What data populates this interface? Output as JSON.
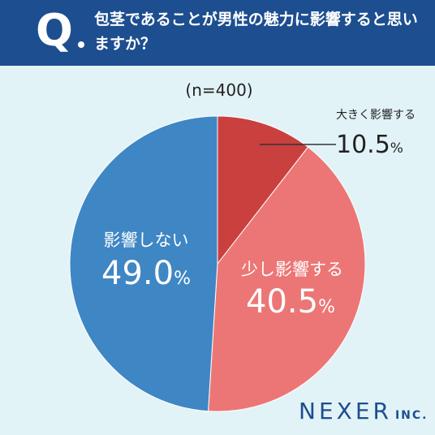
{
  "header": {
    "q_mark": "Q",
    "question": "包茎であることが男性の魅力に影響すると思いますか？"
  },
  "chart_data": {
    "type": "pie",
    "sample_note": "(n=400)",
    "slices": [
      {
        "label": "大きく影響する",
        "value": 10.5,
        "value_text": "10.5",
        "unit": "%",
        "color": "#c9403f"
      },
      {
        "label": "少し影響する",
        "value": 40.5,
        "value_text": "40.5",
        "unit": "%",
        "color": "#ec7676"
      },
      {
        "label": "影響しない",
        "value": 49.0,
        "value_text": "49.0",
        "unit": "%",
        "color": "#3f86c4"
      }
    ]
  },
  "logo": {
    "main": "NEXER",
    "sub": "INC."
  }
}
